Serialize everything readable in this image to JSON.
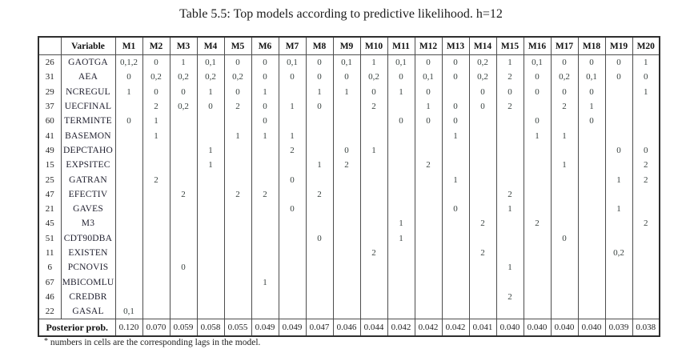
{
  "title": "Table 5.5: Top models according to predictive likelihood. h=12",
  "footnote": "numbers in cells are the corresponding lags in the model.",
  "footnote_marker": "*",
  "table": {
    "corner_label": "",
    "variable_header": "Variable",
    "model_headers": [
      "M1",
      "M2",
      "M3",
      "M4",
      "M5",
      "M6",
      "M7",
      "M8",
      "M9",
      "M10",
      "M11",
      "M12",
      "M13",
      "M14",
      "M15",
      "M16",
      "M17",
      "M18",
      "M19",
      "M20"
    ],
    "rows": [
      {
        "num": "26",
        "variable": "GAOTGA",
        "cells": [
          "0,1,2",
          "0",
          "1",
          "0,1",
          "0",
          "0",
          "0,1",
          "0",
          "0,1",
          "1",
          "0,1",
          "0",
          "0",
          "0,2",
          "1",
          "0,1",
          "0",
          "0",
          "0",
          "1"
        ]
      },
      {
        "num": "31",
        "variable": "AEA",
        "cells": [
          "0",
          "0,2",
          "0,2",
          "0,2",
          "0,2",
          "0",
          "0",
          "0",
          "0",
          "0,2",
          "0",
          "0,1",
          "0",
          "0,2",
          "2",
          "0",
          "0,2",
          "0,1",
          "0",
          "0"
        ]
      },
      {
        "num": "29",
        "variable": "NCREGUL",
        "cells": [
          "1",
          "0",
          "0",
          "1",
          "0",
          "1",
          "",
          "1",
          "1",
          "0",
          "1",
          "0",
          "",
          "0",
          "0",
          "0",
          "0",
          "0",
          "",
          "1"
        ]
      },
      {
        "num": "37",
        "variable": "UECFINAL",
        "cells": [
          "",
          "2",
          "0,2",
          "0",
          "2",
          "0",
          "1",
          "0",
          "",
          "2",
          "",
          "1",
          "0",
          "0",
          "2",
          "",
          "2",
          "1",
          "",
          ""
        ]
      },
      {
        "num": "60",
        "variable": "TERMINTE",
        "cells": [
          "0",
          "1",
          "",
          "",
          "",
          "0",
          "",
          "",
          "",
          "",
          "0",
          "0",
          "0",
          "",
          "",
          "0",
          "",
          "0",
          "",
          ""
        ]
      },
      {
        "num": "41",
        "variable": "BASEMON",
        "cells": [
          "",
          "1",
          "",
          "",
          "1",
          "1",
          "1",
          "",
          "",
          "",
          "",
          "",
          "1",
          "",
          "",
          "1",
          "1",
          "",
          "",
          ""
        ]
      },
      {
        "num": "49",
        "variable": "DEPCTAHO",
        "cells": [
          "",
          "",
          "",
          "1",
          "",
          "",
          "2",
          "",
          "0",
          "1",
          "",
          "",
          "",
          "",
          "",
          "",
          "",
          "",
          "0",
          "0"
        ]
      },
      {
        "num": "15",
        "variable": "EXPSITEC",
        "cells": [
          "",
          "",
          "",
          "1",
          "",
          "",
          "",
          "1",
          "2",
          "",
          "",
          "2",
          "",
          "",
          "",
          "",
          "1",
          "",
          "",
          "2"
        ]
      },
      {
        "num": "25",
        "variable": "GATRAN",
        "cells": [
          "",
          "2",
          "",
          "",
          "",
          "",
          "0",
          "",
          "",
          "",
          "",
          "",
          "1",
          "",
          "",
          "",
          "",
          "",
          "1",
          "2"
        ]
      },
      {
        "num": "47",
        "variable": "EFECTIV",
        "cells": [
          "",
          "",
          "2",
          "",
          "2",
          "2",
          "",
          "2",
          "",
          "",
          "",
          "",
          "",
          "",
          "2",
          "",
          "",
          "",
          "",
          ""
        ]
      },
      {
        "num": "21",
        "variable": "GAVES",
        "cells": [
          "",
          "",
          "",
          "",
          "",
          "",
          "0",
          "",
          "",
          "",
          "",
          "",
          "0",
          "",
          "1",
          "",
          "",
          "",
          "1",
          ""
        ]
      },
      {
        "num": "45",
        "variable": "M3",
        "cells": [
          "",
          "",
          "",
          "",
          "",
          "",
          "",
          "",
          "",
          "",
          "1",
          "",
          "",
          "2",
          "",
          "2",
          "",
          "",
          "",
          "2"
        ]
      },
      {
        "num": "51",
        "variable": "CDT90DBA",
        "cells": [
          "",
          "",
          "",
          "",
          "",
          "",
          "",
          "0",
          "",
          "",
          "1",
          "",
          "",
          "",
          "",
          "",
          "0",
          "",
          "",
          ""
        ]
      },
      {
        "num": "11",
        "variable": "EXISTEN",
        "cells": [
          "",
          "",
          "",
          "",
          "",
          "",
          "",
          "",
          "",
          "2",
          "",
          "",
          "",
          "2",
          "",
          "",
          "",
          "",
          "0,2",
          ""
        ]
      },
      {
        "num": "6",
        "variable": "PCNOVIS",
        "cells": [
          "",
          "",
          "0",
          "",
          "",
          "",
          "",
          "",
          "",
          "",
          "",
          "",
          "",
          "",
          "1",
          "",
          "",
          "",
          "",
          ""
        ]
      },
      {
        "num": "67",
        "variable": "MBICOMLU",
        "cells": [
          "",
          "",
          "",
          "",
          "",
          "1",
          "",
          "",
          "",
          "",
          "",
          "",
          "",
          "",
          "",
          "",
          "",
          "",
          "",
          ""
        ]
      },
      {
        "num": "46",
        "variable": "CREDBR",
        "cells": [
          "",
          "",
          "",
          "",
          "",
          "",
          "",
          "",
          "",
          "",
          "",
          "",
          "",
          "",
          "2",
          "",
          "",
          "",
          "",
          ""
        ]
      },
      {
        "num": "22",
        "variable": "GASAL",
        "cells": [
          "0,1",
          "",
          "",
          "",
          "",
          "",
          "",
          "",
          "",
          "",
          "",
          "",
          "",
          "",
          "",
          "",
          "",
          "",
          "",
          ""
        ]
      }
    ],
    "posterior_label": "Posterior prob.",
    "posterior_values": [
      "0.120",
      "0.070",
      "0.059",
      "0.058",
      "0.055",
      "0.049",
      "0.049",
      "0.047",
      "0.046",
      "0.044",
      "0.042",
      "0.042",
      "0.042",
      "0.041",
      "0.040",
      "0.040",
      "0.040",
      "0.040",
      "0.039",
      "0.038"
    ]
  }
}
